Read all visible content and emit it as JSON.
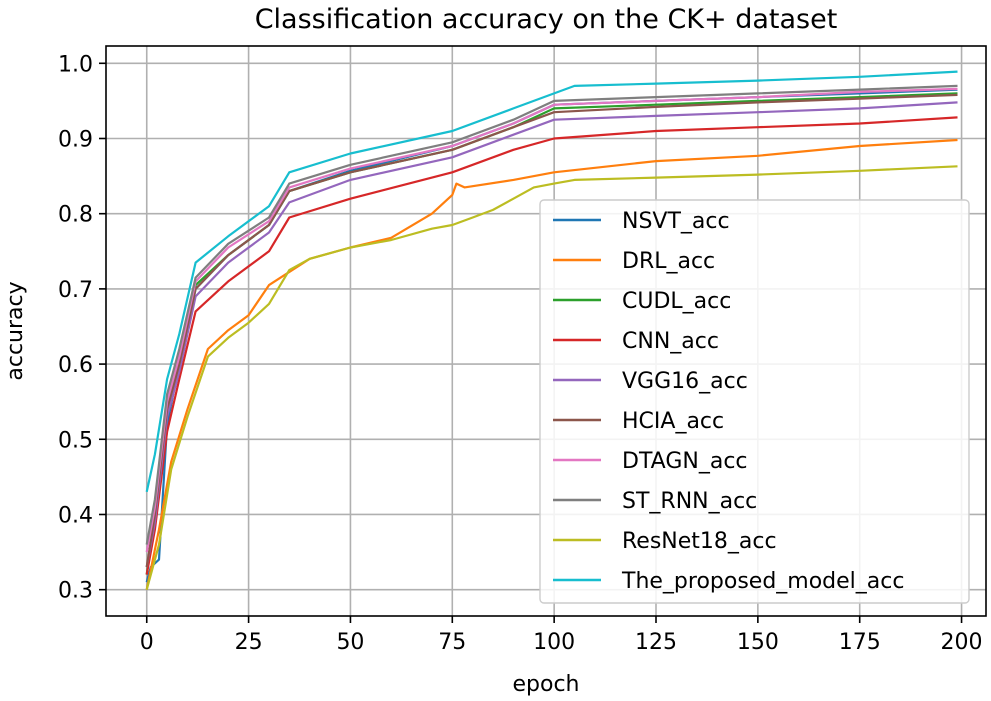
{
  "chart_data": {
    "type": "line",
    "title": "Classification accuracy on the CK+ dataset",
    "xlabel": "epoch",
    "ylabel": "accuracy",
    "xlim": [
      -10,
      206
    ],
    "ylim": [
      0.265,
      1.023
    ],
    "xticks": [
      0,
      25,
      50,
      75,
      100,
      125,
      150,
      175,
      200
    ],
    "yticks": [
      0.3,
      0.4,
      0.5,
      0.6,
      0.7,
      0.8,
      0.9,
      1.0
    ],
    "xtick_labels": [
      "0",
      "25",
      "50",
      "75",
      "100",
      "125",
      "150",
      "175",
      "200"
    ],
    "ytick_labels": [
      "0.3",
      "0.4",
      "0.5",
      "0.6",
      "0.7",
      "0.8",
      "0.9",
      "1.0"
    ],
    "grid": true,
    "legend_position": "lower-right",
    "series": [
      {
        "name": "NSVT_acc",
        "color": "#1f77b4",
        "x": [
          0,
          1,
          3,
          5,
          8,
          12,
          20,
          30,
          35,
          50,
          75,
          90,
          100,
          125,
          150,
          175,
          199
        ],
        "y": [
          0.31,
          0.33,
          0.34,
          0.52,
          0.6,
          0.7,
          0.745,
          0.785,
          0.83,
          0.857,
          0.89,
          0.92,
          0.945,
          0.95,
          0.955,
          0.96,
          0.965
        ]
      },
      {
        "name": "DRL_acc",
        "color": "#ff7f0e",
        "x": [
          0,
          3,
          6,
          10,
          15,
          20,
          25,
          30,
          40,
          50,
          60,
          70,
          75,
          76,
          78,
          90,
          100,
          125,
          150,
          175,
          199
        ],
        "y": [
          0.3,
          0.38,
          0.47,
          0.54,
          0.62,
          0.645,
          0.665,
          0.705,
          0.74,
          0.755,
          0.768,
          0.8,
          0.825,
          0.84,
          0.835,
          0.845,
          0.855,
          0.87,
          0.877,
          0.89,
          0.898
        ]
      },
      {
        "name": "CUDL_acc",
        "color": "#2ca02c",
        "x": [
          0,
          2,
          5,
          8,
          12,
          20,
          30,
          35,
          50,
          75,
          90,
          100,
          125,
          150,
          175,
          199
        ],
        "y": [
          0.32,
          0.4,
          0.55,
          0.61,
          0.705,
          0.745,
          0.785,
          0.83,
          0.855,
          0.885,
          0.915,
          0.94,
          0.945,
          0.95,
          0.955,
          0.96
        ]
      },
      {
        "name": "CNN_acc",
        "color": "#d62728",
        "x": [
          0,
          2,
          5,
          8,
          12,
          20,
          30,
          35,
          50,
          75,
          90,
          100,
          125,
          150,
          175,
          199
        ],
        "y": [
          0.32,
          0.38,
          0.51,
          0.58,
          0.67,
          0.71,
          0.75,
          0.795,
          0.82,
          0.855,
          0.885,
          0.9,
          0.91,
          0.915,
          0.92,
          0.928
        ]
      },
      {
        "name": "VGG16_acc",
        "color": "#9467bd",
        "x": [
          0,
          2,
          5,
          8,
          12,
          20,
          30,
          35,
          50,
          75,
          90,
          100,
          125,
          150,
          175,
          199
        ],
        "y": [
          0.33,
          0.39,
          0.53,
          0.59,
          0.69,
          0.735,
          0.775,
          0.815,
          0.845,
          0.875,
          0.905,
          0.925,
          0.93,
          0.935,
          0.94,
          0.948
        ]
      },
      {
        "name": "HCIA_acc",
        "color": "#8c564b",
        "x": [
          0,
          2,
          5,
          8,
          12,
          20,
          30,
          35,
          50,
          75,
          90,
          100,
          125,
          150,
          175,
          199
        ],
        "y": [
          0.33,
          0.4,
          0.54,
          0.6,
          0.7,
          0.745,
          0.785,
          0.83,
          0.855,
          0.885,
          0.915,
          0.935,
          0.942,
          0.948,
          0.953,
          0.958
        ]
      },
      {
        "name": "DTAGN_acc",
        "color": "#e377c2",
        "x": [
          0,
          2,
          5,
          8,
          12,
          20,
          30,
          35,
          50,
          75,
          90,
          100,
          125,
          150,
          175,
          199
        ],
        "y": [
          0.35,
          0.41,
          0.55,
          0.61,
          0.71,
          0.755,
          0.79,
          0.835,
          0.86,
          0.89,
          0.92,
          0.945,
          0.95,
          0.955,
          0.962,
          0.966
        ]
      },
      {
        "name": "ST_RNN_acc",
        "color": "#7f7f7f",
        "x": [
          0,
          2,
          5,
          8,
          12,
          20,
          30,
          35,
          50,
          75,
          90,
          100,
          125,
          150,
          175,
          199
        ],
        "y": [
          0.36,
          0.42,
          0.56,
          0.62,
          0.715,
          0.76,
          0.795,
          0.84,
          0.865,
          0.895,
          0.925,
          0.95,
          0.955,
          0.96,
          0.965,
          0.97
        ]
      },
      {
        "name": "ResNet18_acc",
        "color": "#bcbd22",
        "x": [
          0,
          3,
          6,
          10,
          15,
          20,
          25,
          30,
          35,
          40,
          50,
          60,
          70,
          75,
          80,
          85,
          90,
          95,
          100,
          105,
          125,
          150,
          175,
          199
        ],
        "y": [
          0.3,
          0.36,
          0.46,
          0.53,
          0.61,
          0.635,
          0.655,
          0.68,
          0.725,
          0.74,
          0.755,
          0.765,
          0.78,
          0.785,
          0.795,
          0.805,
          0.82,
          0.835,
          0.84,
          0.845,
          0.848,
          0.852,
          0.857,
          0.863
        ]
      },
      {
        "name": "The_proposed_model_acc",
        "color": "#17becf",
        "x": [
          0,
          2,
          5,
          8,
          12,
          20,
          30,
          35,
          50,
          75,
          90,
          100,
          105,
          125,
          150,
          175,
          199
        ],
        "y": [
          0.43,
          0.48,
          0.58,
          0.64,
          0.735,
          0.77,
          0.81,
          0.855,
          0.88,
          0.91,
          0.94,
          0.96,
          0.97,
          0.973,
          0.977,
          0.982,
          0.989
        ]
      }
    ]
  }
}
